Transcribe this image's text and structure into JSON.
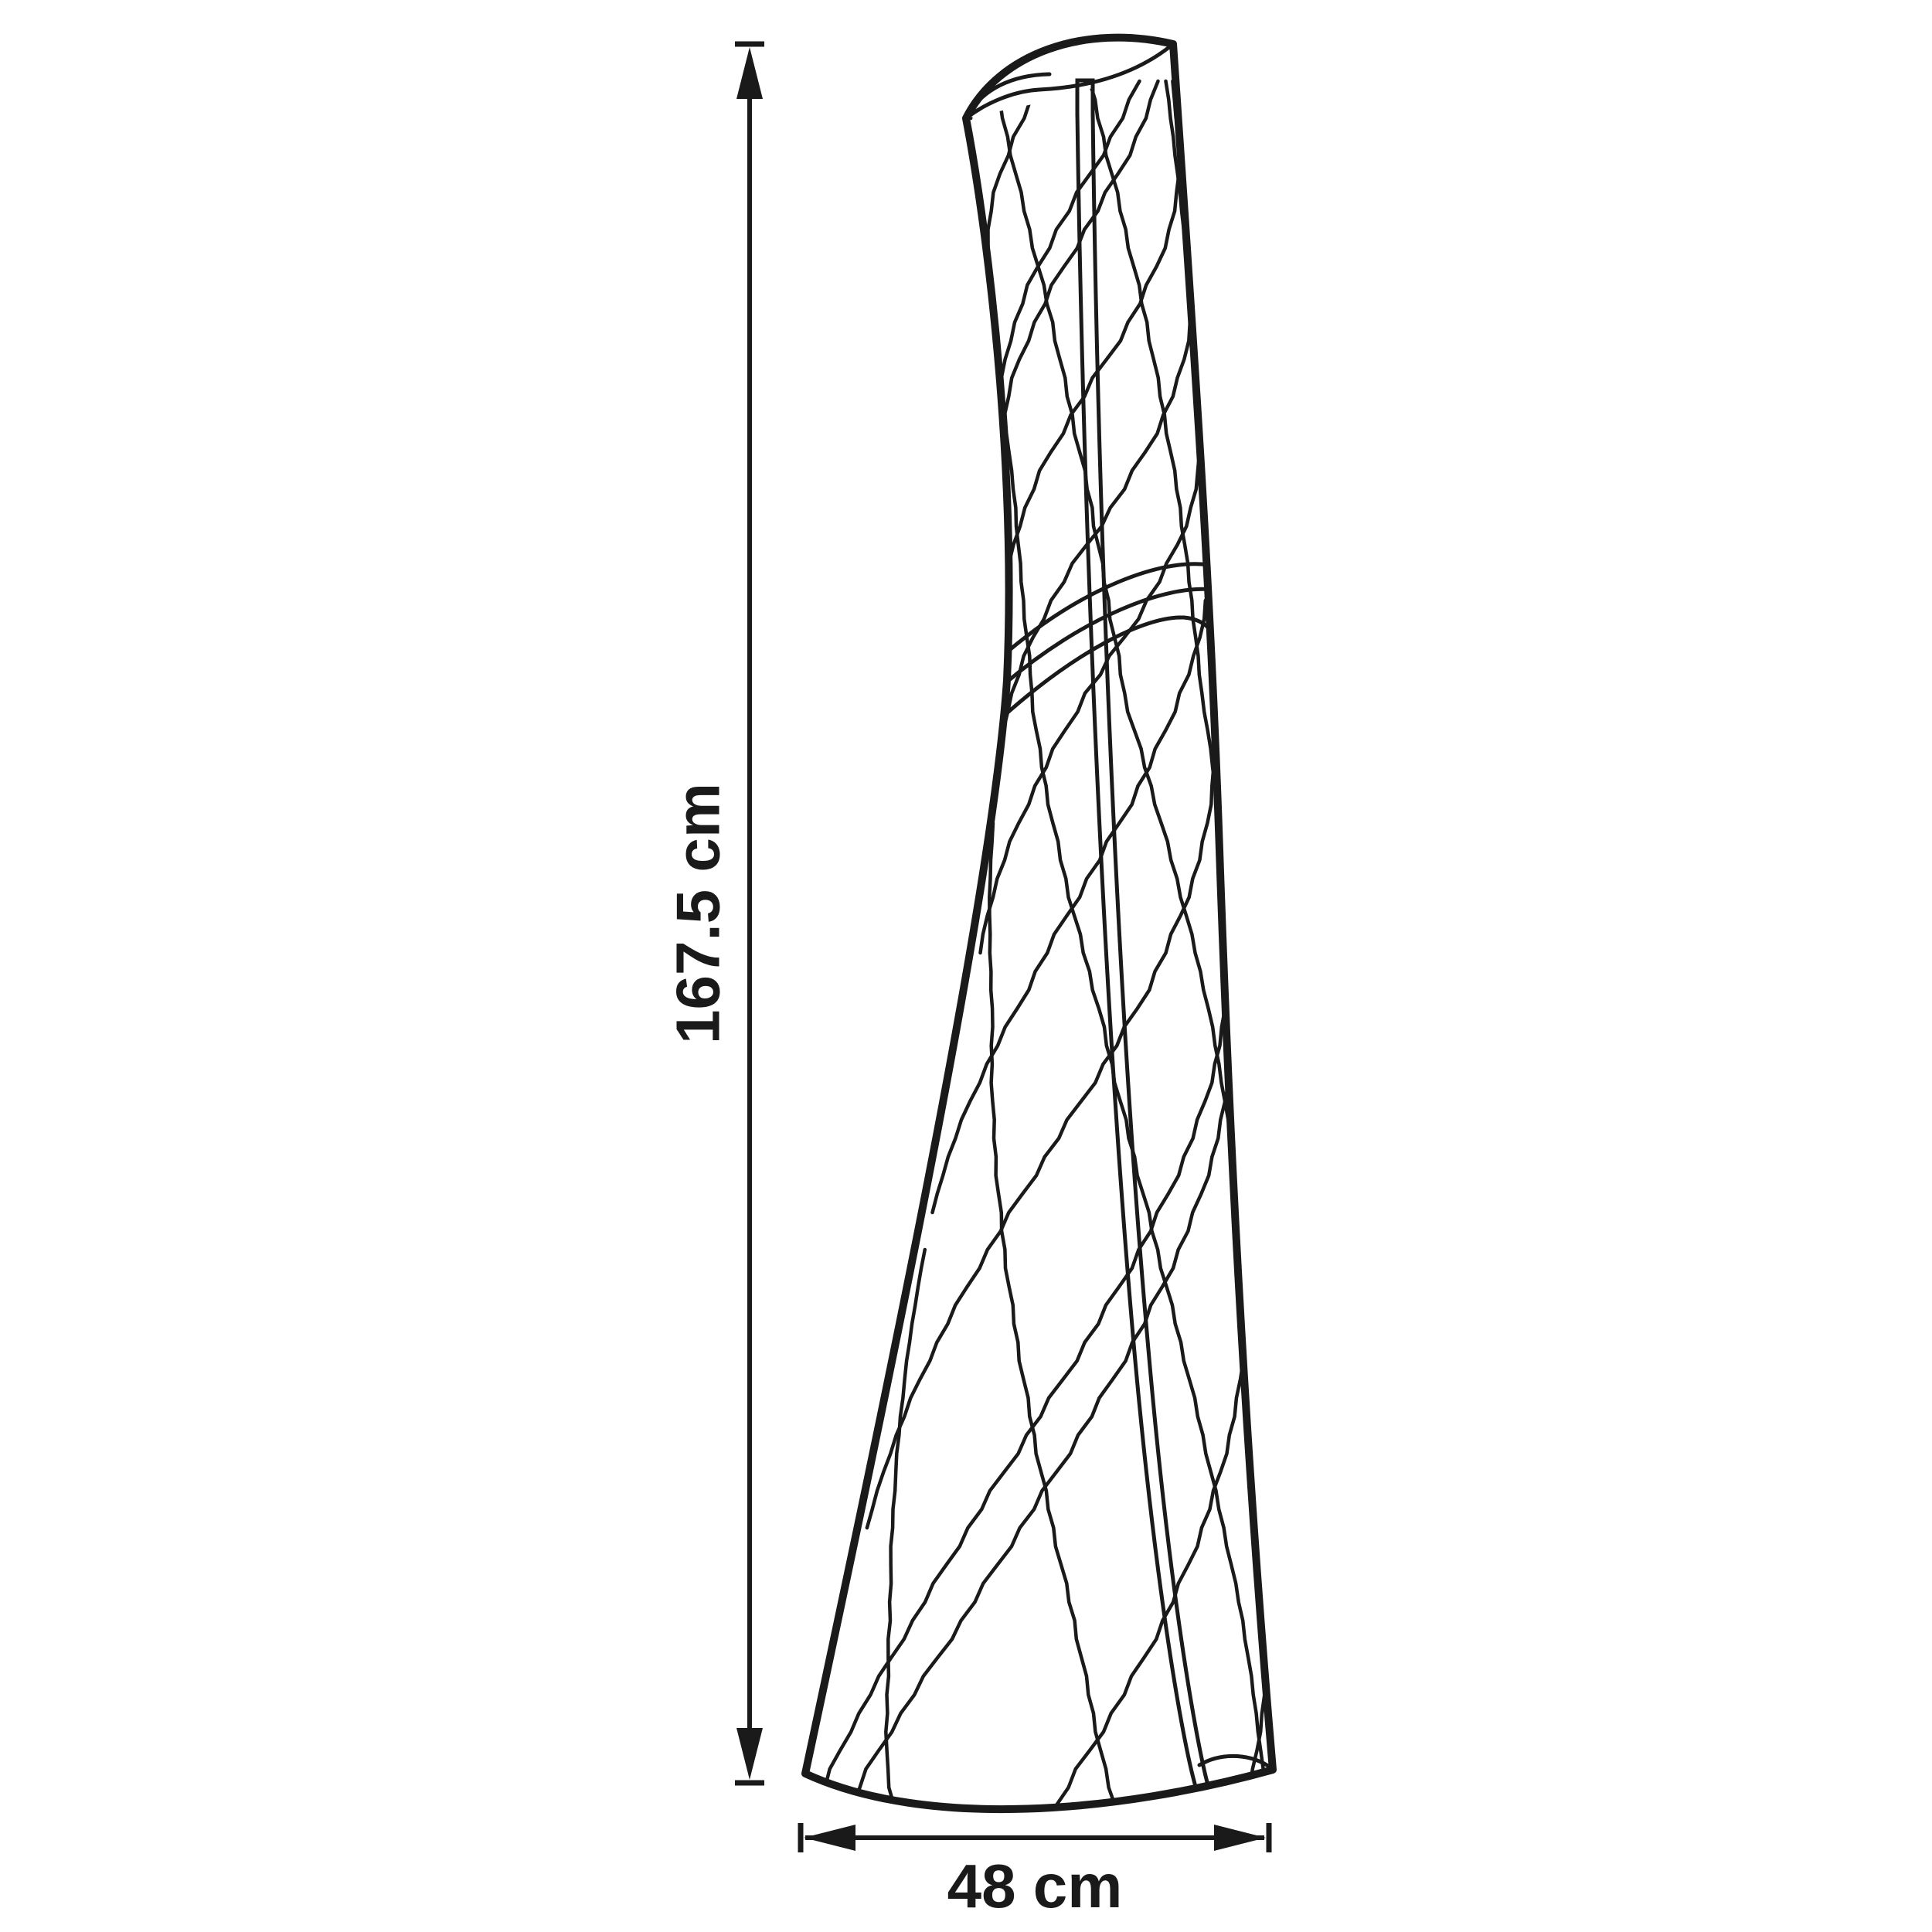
{
  "labels": {
    "height": "167.5 cm",
    "width": "48 cm"
  },
  "colors": {
    "line": "#1a1a1a",
    "background": "#ffffff"
  }
}
